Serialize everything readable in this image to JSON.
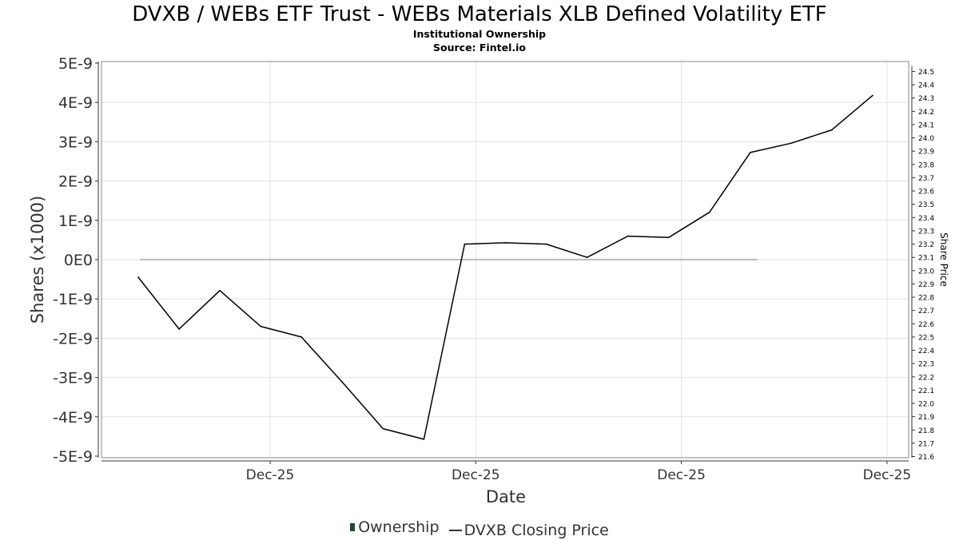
{
  "chart_data": {
    "type": "line",
    "title": "DVXB / WEBs ETF Trust - WEBs Materials XLB Defined Volatility ETF",
    "subtitle": "Institutional Ownership",
    "source": "Source: Fintel.io",
    "xlabel": "Date",
    "ylabel": "Shares (x1000)",
    "y2label": "Share Price",
    "x_ticks": [
      "Dec-25",
      "Dec-25",
      "Dec-25",
      "Dec-25"
    ],
    "y_ticks": [
      "5E-9",
      "4E-9",
      "3E-9",
      "2E-9",
      "1E-9",
      "0E0",
      "-1E-9",
      "-2E-9",
      "-3E-9",
      "-4E-9",
      "-5E-9"
    ],
    "ylim": [
      -5e-09,
      5e-09
    ],
    "y2_ticks": [
      "24.5",
      "24.4",
      "24.3",
      "24.2",
      "24.1",
      "24.0",
      "23.9",
      "23.8",
      "23.7",
      "23.6",
      "23.5",
      "23.4",
      "23.3",
      "23.2",
      "23.1",
      "23.0",
      "22.9",
      "22.8",
      "22.7",
      "22.6",
      "22.5",
      "22.4",
      "22.3",
      "22.2",
      "22.1",
      "22.0",
      "21.9",
      "21.8",
      "21.7",
      "21.6"
    ],
    "y2lim": [
      21.6,
      24.5
    ],
    "series": [
      {
        "name": "Ownership",
        "axis": "left",
        "color": "#999999",
        "values": [
          0,
          0
        ]
      },
      {
        "name": "DVXB Closing Price",
        "axis": "right",
        "color": "#000000",
        "values": [
          22.95,
          22.56,
          22.85,
          22.58,
          22.5,
          22.16,
          21.81,
          21.73,
          23.2,
          23.21,
          23.2,
          23.1,
          23.26,
          23.25,
          23.44,
          23.89,
          23.96,
          24.06,
          24.32
        ]
      }
    ]
  },
  "legend": {
    "ownership_label": "Ownership",
    "price_label": "DVXB Closing Price"
  },
  "colors": {
    "ownership_swatch": "#1f4b2e",
    "price_line": "#000000",
    "ownership_line": "#999999",
    "grid": "#e3e3e3"
  }
}
